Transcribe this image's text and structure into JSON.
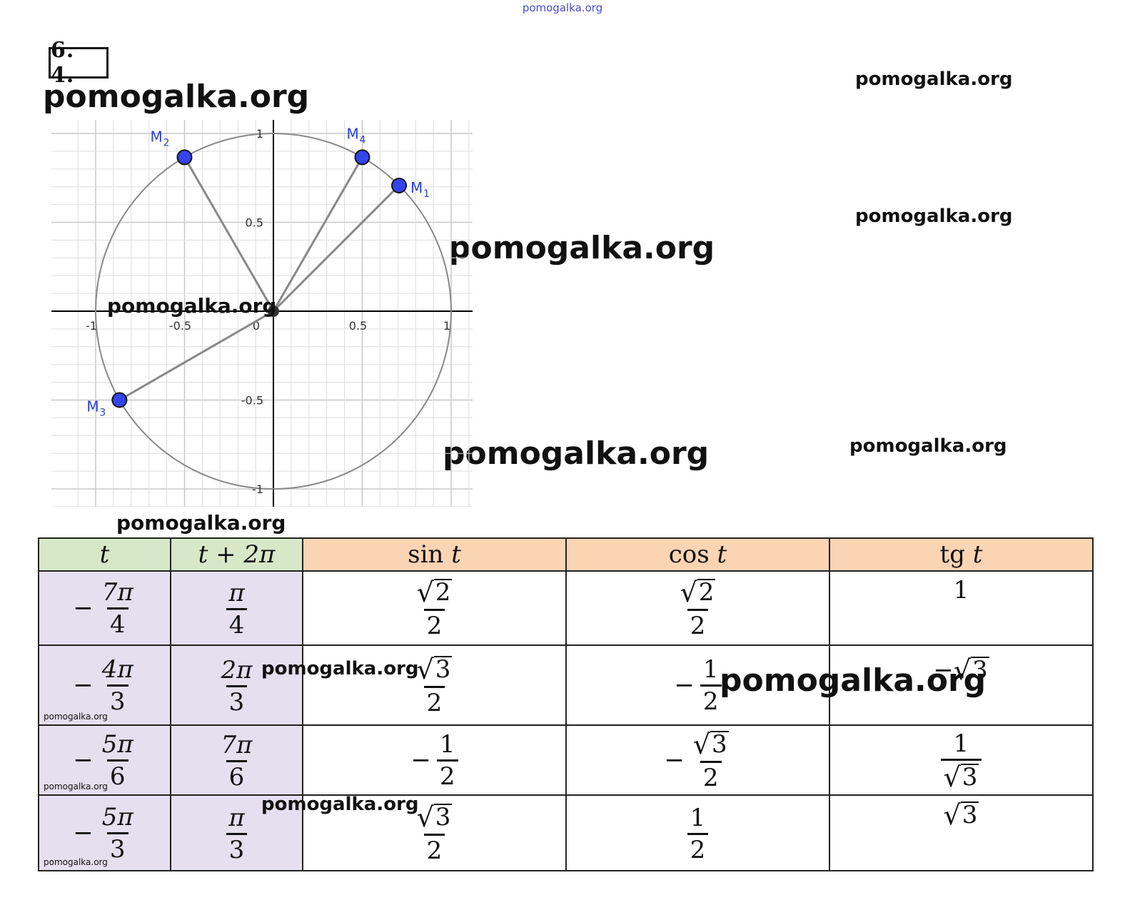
{
  "watermark": "pomogalka.org",
  "task_number": "6. 4.",
  "plot": {
    "x_ticks": [
      "-1",
      "-0.5",
      "0",
      "0.5",
      "1"
    ],
    "y_ticks": [
      "1",
      "0.5",
      "-0.5",
      "-1"
    ],
    "points": [
      {
        "letter": "M",
        "index": "1",
        "x": 0.707,
        "y": 0.707
      },
      {
        "letter": "M",
        "index": "2",
        "x": -0.5,
        "y": 0.866
      },
      {
        "letter": "M",
        "index": "3",
        "x": -0.866,
        "y": -0.5
      },
      {
        "letter": "M",
        "index": "4",
        "x": 0.5,
        "y": 0.866
      }
    ],
    "colors": {
      "point": "#3344ee",
      "circle": "#888888",
      "grid": "#dddddd"
    }
  },
  "table": {
    "headers": {
      "t": "t",
      "t_plus": "t + 2π",
      "sin_fn": "sin",
      "cos_fn": "cos",
      "tg_fn": "tg",
      "var": "t"
    },
    "rows": [
      {
        "t": {
          "num": "7π",
          "den": "4"
        },
        "tp": {
          "num": "π",
          "den": "4"
        },
        "sin": {
          "num": "2",
          "den": "2"
        },
        "cos": {
          "num": "2",
          "den": "2"
        },
        "tg": "1"
      },
      {
        "t": {
          "num": "4π",
          "den": "3"
        },
        "tp": {
          "num": "2π",
          "den": "3"
        },
        "sin": {
          "num": "3",
          "den": "2"
        },
        "cos": {
          "num": "1",
          "den": "2"
        },
        "tg": "3"
      },
      {
        "t": {
          "num": "5π",
          "den": "6"
        },
        "tp": {
          "num": "7π",
          "den": "6"
        },
        "sin": {
          "num": "1",
          "den": "2"
        },
        "cos": {
          "num": "3",
          "den": "2"
        },
        "tg": {
          "num": "1",
          "den": "3"
        }
      },
      {
        "t": {
          "num": "5π",
          "den": "3"
        },
        "tp": {
          "num": "π",
          "den": "3"
        },
        "sin": {
          "num": "3",
          "den": "2"
        },
        "cos": {
          "num": "1",
          "den": "2"
        },
        "tg": "3"
      }
    ]
  },
  "symbols": {
    "minus": "−",
    "sqrt": "√"
  }
}
